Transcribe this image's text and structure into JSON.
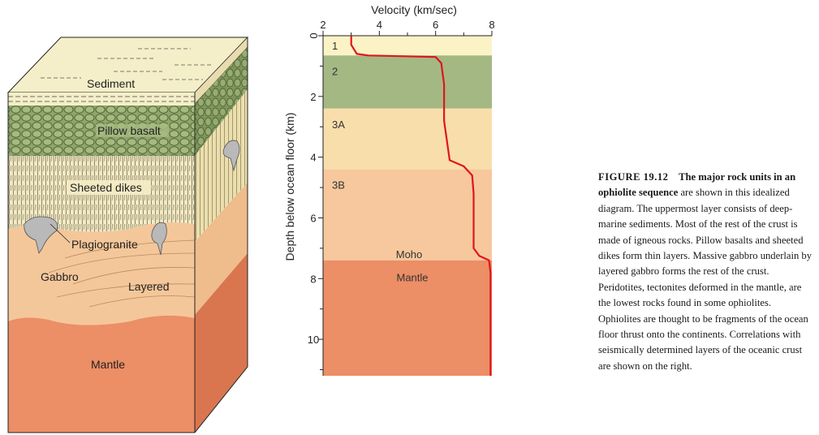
{
  "block_diagram": {
    "labels": {
      "sediment": "Sediment",
      "pillow_basalt": "Pillow basalt",
      "sheeted_dikes": "Sheeted dikes",
      "plagiogranite": "Plagiogranite",
      "gabbro": "Gabbro",
      "layered": "Layered",
      "mantle": "Mantle"
    },
    "colors": {
      "sediment": "#f4efc8",
      "pillow_basalt": "#8fa56b",
      "sheeted_dikes": "#f4ebc4",
      "gabbro": "#f4c79a",
      "mantle": "#ec8e66"
    }
  },
  "chart_data": {
    "type": "line",
    "xlabel": "Velocity (km/sec)",
    "ylabel": "Depth below ocean floor (km)",
    "xlim": [
      2,
      8
    ],
    "ylim": [
      0,
      11.2
    ],
    "x_ticks": [
      "2",
      "4",
      "6",
      "8"
    ],
    "y_ticks": [
      "0",
      "2",
      "4",
      "6",
      "8",
      "10"
    ],
    "layers": [
      {
        "label": "1",
        "top": 0,
        "bottom": 0.65,
        "color": "#fbf3c6"
      },
      {
        "label": "2",
        "top": 0.65,
        "bottom": 2.4,
        "color": "#a4b884"
      },
      {
        "label": "3A",
        "top": 2.4,
        "bottom": 4.4,
        "color": "#f8deab"
      },
      {
        "label": "3B",
        "top": 4.4,
        "bottom": 7.4,
        "color": "#f7c89d"
      },
      {
        "label": "Mantle",
        "top": 7.4,
        "bottom": 11.2,
        "color": "#ec8e66"
      }
    ],
    "annotations": [
      "Moho"
    ],
    "velocity_profile": {
      "color": "#e0151d",
      "points": [
        [
          3.0,
          0
        ],
        [
          3.0,
          0.3
        ],
        [
          3.2,
          0.6
        ],
        [
          3.6,
          0.65
        ],
        [
          6.0,
          0.7
        ],
        [
          6.2,
          0.9
        ],
        [
          6.3,
          1.6
        ],
        [
          6.3,
          2.8
        ],
        [
          6.5,
          4.1
        ],
        [
          7.0,
          4.3
        ],
        [
          7.3,
          4.6
        ],
        [
          7.35,
          5.2
        ],
        [
          7.35,
          7.0
        ],
        [
          7.55,
          7.25
        ],
        [
          7.9,
          7.4
        ],
        [
          7.95,
          7.8
        ],
        [
          7.95,
          11.2
        ]
      ]
    }
  },
  "caption": {
    "figure_number": "FIGURE 19.12",
    "title": "The major rock units in an ophiolite sequence",
    "body": " are shown in this idealized diagram. The uppermost layer consists of deep-marine sediments. Most of the rest of the crust is made of igneous rocks. Pillow basalts and sheeted dikes form thin layers. Massive gabbro underlain by layered gabbro forms the rest of the crust. Peridotites, tectonites deformed in the mantle, are the lowest rocks found in some ophiolites. Ophiolites are thought to be fragments of the ocean floor thrust onto the continents. Correlations with seismically determined layers of the oceanic crust are shown on the right."
  }
}
